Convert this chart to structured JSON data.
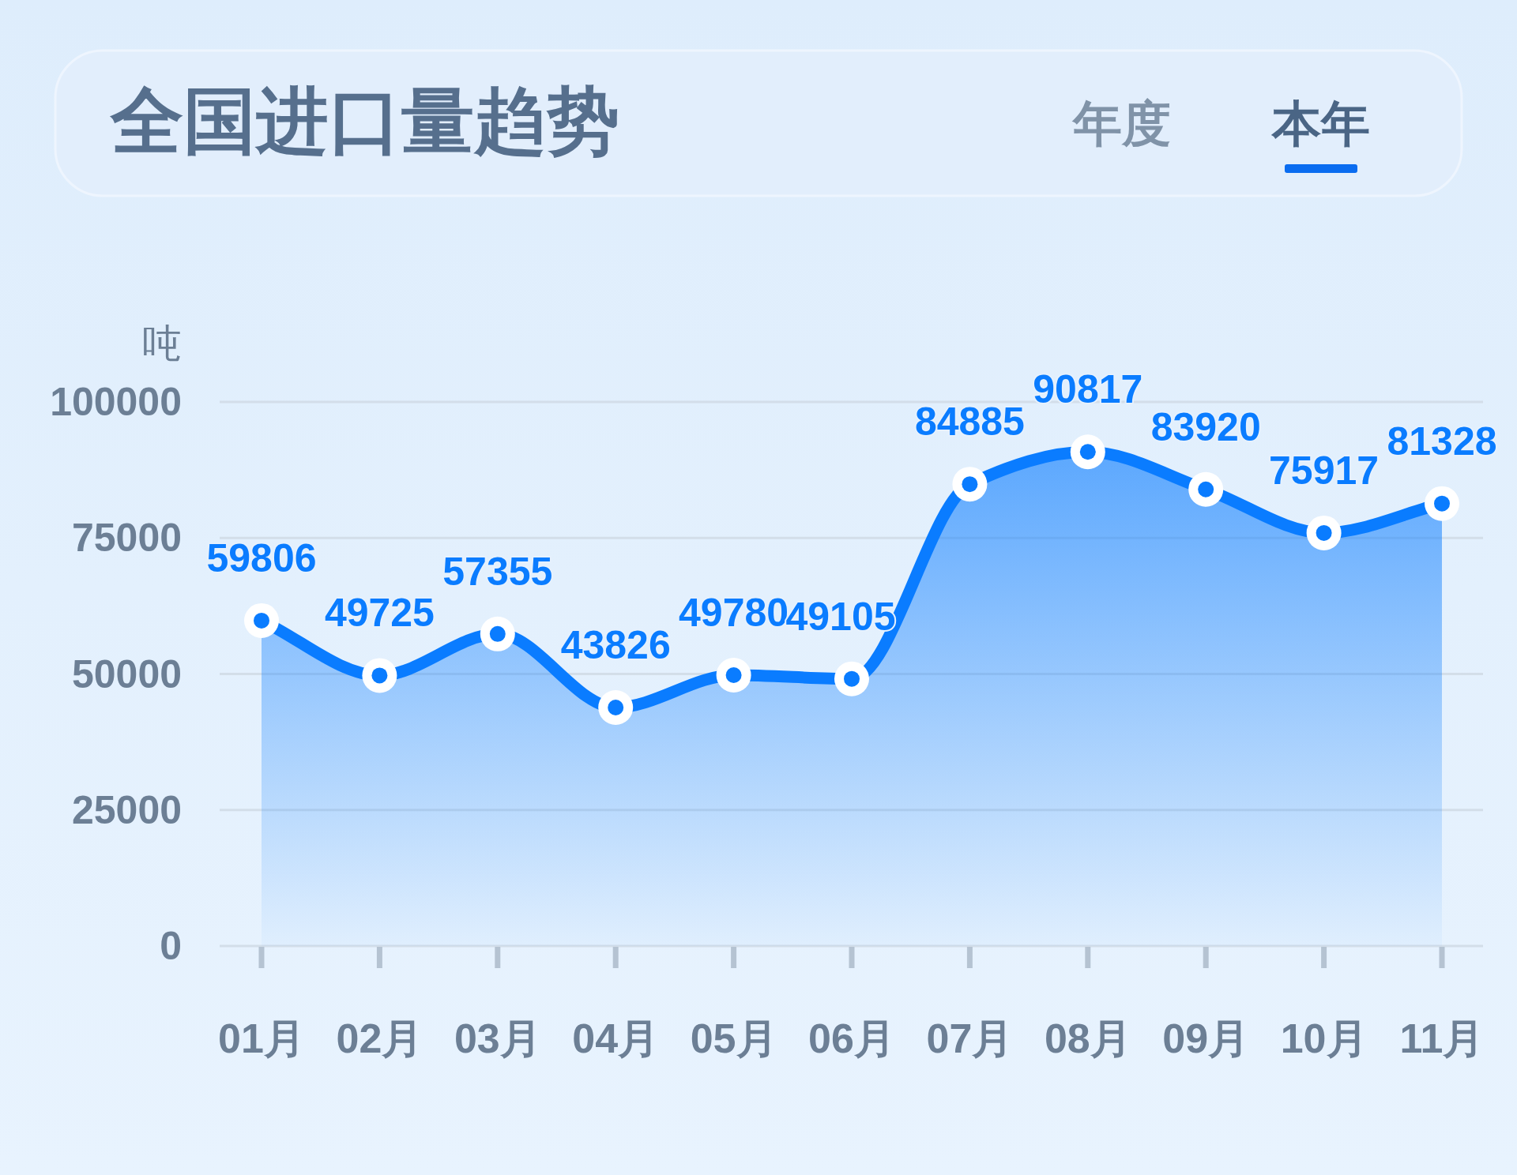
{
  "chart_data": {
    "type": "area",
    "title": "全国进口量趋势",
    "ylabel": "吨",
    "annotations": [
      "年度",
      "本年"
    ],
    "categories": [
      "01月",
      "02月",
      "03月",
      "04月",
      "05月",
      "06月",
      "07月",
      "08月",
      "09月",
      "10月",
      "11月"
    ],
    "series": [
      {
        "color": "#0a7cff",
        "values": [
          59806,
          49725,
          57355,
          43826,
          49780,
          49105,
          84885,
          90817,
          83920,
          75917,
          81328
        ]
      }
    ],
    "ylim": [
      0,
      100000
    ],
    "yticks": [
      0,
      25000,
      50000,
      75000,
      100000
    ],
    "grid": "y",
    "marker": "circle",
    "data_labels": true
  }
}
